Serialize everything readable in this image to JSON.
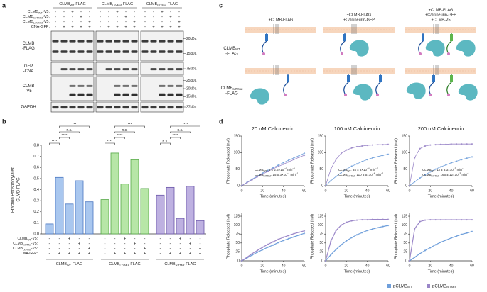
{
  "panel_a": {
    "label": "a",
    "groups": [
      [
        "CLMB",
        {
          "sub": "WT"
        },
        "-FLAG"
      ],
      [
        "CLMB",
        {
          "sub": "LxVMut"
        },
        "-FLAG"
      ],
      [
        "CLMB",
        {
          "sub": "IxITMut"
        },
        "-FLAG"
      ]
    ],
    "sign_rows": [
      {
        "label": [
          "CLMB",
          {
            "sub": "WT"
          },
          "-V5:"
        ],
        "signs": [
          "-",
          "-",
          "+",
          "-",
          "-",
          "-",
          "-",
          "+",
          "-",
          "-",
          "-",
          "-",
          "+",
          "-",
          "-"
        ]
      },
      {
        "label": [
          "CLMB",
          {
            "sub": "IxITMut"
          },
          "-V5:"
        ],
        "signs": [
          "-",
          "-",
          "-",
          "+",
          "-",
          "-",
          "-",
          "-",
          "+",
          "-",
          "-",
          "-",
          "-",
          "+",
          "-"
        ]
      },
      {
        "label": [
          "CLMB",
          {
            "sub": "LxVMut"
          },
          "-V5:"
        ],
        "signs": [
          "-",
          "-",
          "-",
          "-",
          "+",
          "-",
          "-",
          "-",
          "-",
          "+",
          "-",
          "-",
          "-",
          "-",
          "+"
        ]
      },
      {
        "label": [
          "CNA-GFP:"
        ],
        "signs": [
          "-",
          "+",
          "+",
          "+",
          "+",
          "-",
          "+",
          "+",
          "+",
          "+",
          "-",
          "+",
          "+",
          "+",
          "+"
        ]
      }
    ],
    "blots": [
      {
        "label": {
          "lines": [
            "CLMB",
            "-FLAG"
          ]
        },
        "markers": [
          "20kDa",
          "15kDa"
        ]
      },
      {
        "label": {
          "lines": [
            "GFP",
            "-CNA"
          ]
        },
        "markers": [
          "75kDa"
        ]
      },
      {
        "label": {
          "lines": [
            "CLMB",
            "-V5"
          ]
        },
        "markers": [
          "25kDa",
          "20kDa",
          "15kDa"
        ]
      },
      {
        "label": {
          "lines": [
            "GAPDH"
          ]
        },
        "markers": [
          "37kDa"
        ]
      }
    ]
  },
  "panel_c": {
    "label": "c",
    "columns": [
      {
        "lines": [
          "+CLMB-FLAG"
        ]
      },
      {
        "lines": [
          "+CLMB-FLAG",
          "+Calcineurin-GFP"
        ]
      },
      {
        "lines": [
          "+CLMB-FLAG",
          "+Calcineurin-GFP",
          "+CLMB-V5"
        ]
      }
    ],
    "rows": [
      {
        "lines": [
          [
            "CLMB",
            {
              "sub": "WT"
            }
          ],
          "-FLAG"
        ]
      },
      {
        "lines": [
          [
            "CLMB",
            {
              "sub": "IxITMut"
            }
          ],
          "-FLAG"
        ]
      }
    ]
  },
  "panel_d": {
    "label": "d",
    "legend": [
      {
        "name": [
          "pCLMB",
          {
            "sub": "WT"
          }
        ],
        "color": "#6f9fdb"
      },
      {
        "name": [
          "pCLMB",
          {
            "sub": "IxITMut"
          }
        ],
        "color": "#9a86c8"
      }
    ]
  },
  "chart_data": [
    {
      "type": "bar",
      "label": "b",
      "ylabel": {
        "lines": [
          "Fraction Phosphorylated",
          "CLMB-FLAG"
        ]
      },
      "ylim": [
        0,
        0.8
      ],
      "yticks": [
        {
          "value": 0,
          "label": "0.0"
        },
        0.1,
        0.2,
        0.3,
        0.4,
        0.5,
        0.6,
        0.7,
        0.8
      ],
      "groups": [
        {
          "name": [
            "CLMB",
            {
              "sub": "WT"
            },
            "-FLAG"
          ],
          "color": "#a9c7ef",
          "edge": "#4a76c0",
          "values": [
            0.09,
            0.51,
            0.27,
            0.48,
            0.29
          ]
        },
        {
          "name": [
            "CLMB",
            {
              "sub": "LxVMut"
            },
            "-FLAG"
          ],
          "color": "#b7e6a7",
          "edge": "#56a848",
          "values": [
            0.31,
            0.73,
            0.45,
            0.67,
            0.41
          ]
        },
        {
          "name": [
            "CLMB",
            {
              "sub": "IxITMut"
            },
            "-FLAG"
          ],
          "color": "#beb1e1",
          "edge": "#6a56a8",
          "values": [
            0.35,
            0.42,
            0.14,
            0.43,
            0.12
          ]
        }
      ],
      "sign_rows": [
        {
          "label": [
            "CLMB",
            {
              "sub": "WT"
            },
            "-V5:"
          ],
          "signs": [
            "-",
            "-",
            "+",
            "-",
            "-",
            "-",
            "-",
            "+",
            "-",
            "-",
            "-",
            "-",
            "+",
            "-",
            "-"
          ]
        },
        {
          "label": [
            "CLMB",
            {
              "sub": "IxITMut"
            },
            "-V5:"
          ],
          "signs": [
            "-",
            "-",
            "-",
            "+",
            "-",
            "-",
            "-",
            "-",
            "+",
            "-",
            "-",
            "-",
            "-",
            "+",
            "-"
          ]
        },
        {
          "label": [
            "CLMB",
            {
              "sub": "LxVMut"
            },
            "-V5:"
          ],
          "signs": [
            "-",
            "-",
            "-",
            "-",
            "+",
            "-",
            "-",
            "-",
            "-",
            "+",
            "-",
            "-",
            "-",
            "-",
            "+"
          ]
        },
        {
          "label": [
            "CNA-GFP:"
          ],
          "signs": [
            "-",
            "+",
            "+",
            "+",
            "+",
            "-",
            "+",
            "+",
            "+",
            "+",
            "-",
            "+",
            "+",
            "+",
            "+"
          ]
        }
      ],
      "annotations": [
        {
          "text": "****",
          "bars": [
            0,
            1
          ]
        },
        {
          "text": "****",
          "bars": [
            1,
            2
          ]
        },
        {
          "text": "n.s.",
          "bars": [
            1,
            3
          ]
        },
        {
          "text": "***",
          "bars": [
            1,
            4
          ]
        },
        {
          "text": "****",
          "bars": [
            5,
            6
          ]
        },
        {
          "text": "****",
          "bars": [
            6,
            7
          ]
        },
        {
          "text": "n.s.",
          "bars": [
            6,
            8
          ]
        },
        {
          "text": "***",
          "bars": [
            6,
            9
          ]
        },
        {
          "text": "n.s.",
          "bars": [
            10,
            11
          ]
        },
        {
          "text": "****",
          "bars": [
            11,
            12
          ]
        },
        {
          "text": "n.s.",
          "bars": [
            11,
            13
          ]
        },
        {
          "text": "****",
          "bars": [
            11,
            14
          ]
        }
      ]
    },
    {
      "type": "line",
      "title": "20 nM Calcineurin",
      "xlabel": "Time (minutes)",
      "ylabel": "Phosphate Released (nM)",
      "x": [
        0,
        5,
        10,
        15,
        20,
        25,
        30,
        35,
        40,
        45,
        50,
        55,
        60
      ],
      "xlim": [
        0,
        60
      ],
      "xticks": [
        0,
        20,
        40,
        60
      ],
      "ylim": [
        0,
        150
      ],
      "yticks": [
        0,
        50,
        100,
        150
      ],
      "series": [
        {
          "color": "#6f9fdb",
          "values": [
            0,
            10,
            20,
            29,
            38,
            46,
            54,
            62,
            70,
            77,
            84,
            91,
            98
          ]
        },
        {
          "color": "#9a86c8",
          "values": [
            0,
            9,
            18,
            27,
            35,
            43,
            51,
            58,
            65,
            72,
            79,
            86,
            92
          ]
        }
      ],
      "annotations": [
        {
          "color": "#4f86cf",
          "text": [
            "CLMB",
            {
              "sub": "WT"
            },
            ": 8 ± 2.5×10",
            {
              "sup": "−4"
            },
            " min",
            {
              "sup": "−1"
            }
          ]
        },
        {
          "color": "#7a66b0",
          "text": [
            "CLMB",
            {
              "sub": "IxITMut"
            },
            ": 15 ± 3×10",
            {
              "sup": "−4"
            },
            " min",
            {
              "sup": "−1"
            }
          ]
        }
      ]
    },
    {
      "type": "line",
      "title": "100 nM Calcineurin",
      "xlabel": "Time (minutes)",
      "ylabel": "Phosphate Released (nM)",
      "x": [
        0,
        5,
        10,
        15,
        20,
        25,
        30,
        35,
        40,
        45,
        50,
        55,
        60
      ],
      "xlim": [
        0,
        60
      ],
      "xticks": [
        0,
        20,
        40,
        60
      ],
      "ylim": [
        0,
        150
      ],
      "yticks": [
        0,
        50,
        100,
        150
      ],
      "series": [
        {
          "color": "#6f9fdb",
          "values": [
            0,
            15,
            28,
            40,
            50,
            59,
            66,
            73,
            79,
            84,
            88,
            92,
            95
          ]
        },
        {
          "color": "#9a86c8",
          "values": [
            0,
            50,
            80,
            98,
            108,
            114,
            118,
            120,
            122,
            123,
            124,
            124,
            125
          ]
        }
      ],
      "annotations": [
        {
          "color": "#4f86cf",
          "text": [
            "CLMB",
            {
              "sub": "WT"
            },
            ": 34 ± 3×10",
            {
              "sup": "−4"
            },
            " min",
            {
              "sup": "−1"
            }
          ]
        },
        {
          "color": "#7a66b0",
          "text": [
            "CLMB",
            {
              "sub": "IxITMut"
            },
            ": 110 ± 5×10",
            {
              "sup": "−4"
            },
            " min",
            {
              "sup": "−1"
            }
          ]
        }
      ]
    },
    {
      "type": "line",
      "title": "200 nM Calcineurin",
      "xlabel": "Time (minutes)",
      "ylabel": "Phosphate Released (nM)",
      "x": [
        0,
        5,
        10,
        15,
        20,
        25,
        30,
        35,
        40,
        45,
        50,
        55,
        60
      ],
      "xlim": [
        0,
        60
      ],
      "xticks": [
        0,
        20,
        40,
        60
      ],
      "ylim": [
        0,
        150
      ],
      "yticks": [
        0,
        50,
        100,
        150
      ],
      "series": [
        {
          "color": "#6f9fdb",
          "values": [
            0,
            12,
            23,
            33,
            42,
            50,
            57,
            63,
            69,
            74,
            79,
            83,
            87
          ]
        },
        {
          "color": "#9a86c8",
          "values": [
            0,
            85,
            112,
            120,
            123,
            124,
            125,
            125,
            126,
            126,
            126,
            126,
            126
          ]
        }
      ],
      "annotations": [
        {
          "color": "#4f86cf",
          "text": [
            "CLMB",
            {
              "sub": "WT"
            },
            ": 13 ± 3.3×10",
            {
              "sup": "−3"
            },
            " min",
            {
              "sup": "−1"
            }
          ]
        },
        {
          "color": "#7a66b0",
          "text": [
            "CLMB",
            {
              "sub": "IxITMut"
            },
            ": 166 ± 12×10",
            {
              "sup": "−3"
            },
            " min",
            {
              "sup": "−1"
            }
          ]
        }
      ]
    },
    {
      "type": "line",
      "xlabel": "Time (minutes)",
      "ylabel": "Phosphate Released (nM)",
      "x": [
        0,
        5,
        10,
        15,
        20,
        25,
        30,
        35,
        40,
        45,
        50,
        55,
        60
      ],
      "xlim": [
        0,
        60
      ],
      "xticks": [
        0,
        20,
        40,
        60
      ],
      "ylim": [
        0,
        135
      ],
      "yticks": [
        0,
        25,
        50,
        75,
        100,
        125
      ],
      "series": [
        {
          "color": "#6f9fdb",
          "values": [
            0,
            8,
            16,
            24,
            31,
            38,
            44,
            51,
            57,
            62,
            67,
            72,
            77
          ]
        },
        {
          "color": "#9a86c8",
          "values": [
            0,
            10,
            20,
            29,
            38,
            46,
            53,
            60,
            66,
            71,
            76,
            80,
            84
          ]
        }
      ]
    },
    {
      "type": "line",
      "xlabel": "Time (minutes)",
      "ylabel": "Phosphate Released (nM)",
      "x": [
        0,
        5,
        10,
        15,
        20,
        25,
        30,
        35,
        40,
        45,
        50,
        55,
        60
      ],
      "xlim": [
        0,
        60
      ],
      "xticks": [
        0,
        20,
        40,
        60
      ],
      "ylim": [
        0,
        135
      ],
      "yticks": [
        0,
        25,
        50,
        75,
        100,
        125
      ],
      "series": [
        {
          "color": "#6f9fdb",
          "values": [
            0,
            17,
            32,
            45,
            56,
            65,
            73,
            79,
            85,
            89,
            93,
            96,
            99
          ]
        },
        {
          "color": "#9a86c8",
          "values": [
            0,
            55,
            85,
            100,
            108,
            112,
            114,
            115,
            115,
            116,
            116,
            116,
            116
          ]
        }
      ]
    },
    {
      "type": "line",
      "xlabel": "Time (minutes)",
      "ylabel": "Phosphate Released (nM)",
      "x": [
        0,
        5,
        10,
        15,
        20,
        25,
        30,
        35,
        40,
        45,
        50,
        55,
        60
      ],
      "xlim": [
        0,
        60
      ],
      "xticks": [
        0,
        20,
        40,
        60
      ],
      "ylim": [
        0,
        135
      ],
      "yticks": [
        0,
        25,
        50,
        75,
        100,
        125
      ],
      "series": [
        {
          "color": "#6f9fdb",
          "values": [
            0,
            10,
            20,
            29,
            37,
            45,
            52,
            58,
            64,
            69,
            74,
            78,
            82
          ]
        },
        {
          "color": "#9a86c8",
          "values": [
            0,
            90,
            110,
            114,
            115,
            115,
            115,
            115,
            115,
            115,
            115,
            115,
            115
          ]
        }
      ]
    }
  ]
}
